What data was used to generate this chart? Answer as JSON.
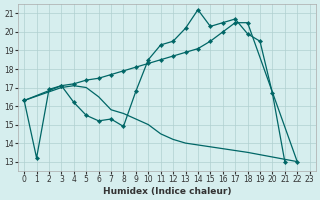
{
  "xlabel": "Humidex (Indice chaleur)",
  "background_color": "#d6eeee",
  "grid_color": "#b0d0d0",
  "line_color": "#006666",
  "xlim": [
    -0.5,
    23.5
  ],
  "ylim": [
    12.5,
    21.5
  ],
  "xticks": [
    0,
    1,
    2,
    3,
    4,
    5,
    6,
    7,
    8,
    9,
    10,
    11,
    12,
    13,
    14,
    15,
    16,
    17,
    18,
    19,
    20,
    21,
    22,
    23
  ],
  "yticks": [
    13,
    14,
    15,
    16,
    17,
    18,
    19,
    20,
    21
  ],
  "line1_x": [
    0,
    1,
    2,
    3,
    4,
    5,
    6,
    7,
    8,
    9,
    10,
    11,
    12,
    13,
    14,
    15,
    16,
    17,
    18,
    19,
    20,
    21
  ],
  "line1_y": [
    16.3,
    13.2,
    16.9,
    17.1,
    16.2,
    15.5,
    15.2,
    15.3,
    14.9,
    16.8,
    18.5,
    19.3,
    19.5,
    20.2,
    21.2,
    20.3,
    20.5,
    20.7,
    19.9,
    19.5,
    16.7,
    13.0
  ],
  "line2_x": [
    0,
    3,
    4,
    5,
    6,
    7,
    8,
    9,
    10,
    11,
    12,
    13,
    14,
    15,
    16,
    17,
    18,
    22
  ],
  "line2_y": [
    16.3,
    17.1,
    17.2,
    17.4,
    17.5,
    17.7,
    17.9,
    18.1,
    18.3,
    18.5,
    18.7,
    18.9,
    19.1,
    19.5,
    20.0,
    20.5,
    20.5,
    13.0
  ],
  "line3_x": [
    0,
    3,
    4,
    5,
    6,
    7,
    8,
    9,
    10,
    11,
    12,
    13,
    14,
    15,
    16,
    17,
    18,
    22
  ],
  "line3_y": [
    16.3,
    17.0,
    17.1,
    17.0,
    16.5,
    15.8,
    15.6,
    15.3,
    15.0,
    14.5,
    14.2,
    14.0,
    13.9,
    13.8,
    13.7,
    13.6,
    13.5,
    13.0
  ]
}
